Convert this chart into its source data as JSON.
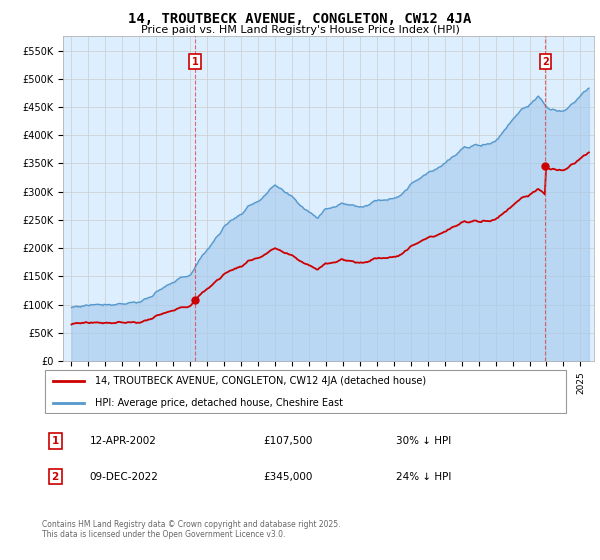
{
  "title": "14, TROUTBECK AVENUE, CONGLETON, CW12 4JA",
  "subtitle": "Price paid vs. HM Land Registry's House Price Index (HPI)",
  "legend_label_red": "14, TROUTBECK AVENUE, CONGLETON, CW12 4JA (detached house)",
  "legend_label_blue": "HPI: Average price, detached house, Cheshire East",
  "annotation1_date": "12-APR-2002",
  "annotation1_price": "£107,500",
  "annotation1_hpi": "30% ↓ HPI",
  "annotation1_year": 2002.28,
  "annotation1_price_val": 107500,
  "annotation2_date": "09-DEC-2022",
  "annotation2_price": "£345,000",
  "annotation2_hpi": "24% ↓ HPI",
  "annotation2_year": 2022.94,
  "annotation2_price_val": 345000,
  "footer": "Contains HM Land Registry data © Crown copyright and database right 2025.\nThis data is licensed under the Open Government Licence v3.0.",
  "ylim": [
    0,
    575000
  ],
  "yticks": [
    0,
    50000,
    100000,
    150000,
    200000,
    250000,
    300000,
    350000,
    400000,
    450000,
    500000,
    550000
  ],
  "ytick_labels": [
    "£0",
    "£50K",
    "£100K",
    "£150K",
    "£200K",
    "£250K",
    "£300K",
    "£350K",
    "£400K",
    "£450K",
    "£500K",
    "£550K"
  ],
  "grid_color": "#cccccc",
  "plot_bg_color": "#ddeeff",
  "red_color": "#cc0000",
  "blue_color": "#5599cc",
  "blue_fill_color": "#aaccee",
  "vline_color": "#dd4444",
  "box_color": "#cc0000",
  "xmin": 1994.5,
  "xmax": 2025.8
}
